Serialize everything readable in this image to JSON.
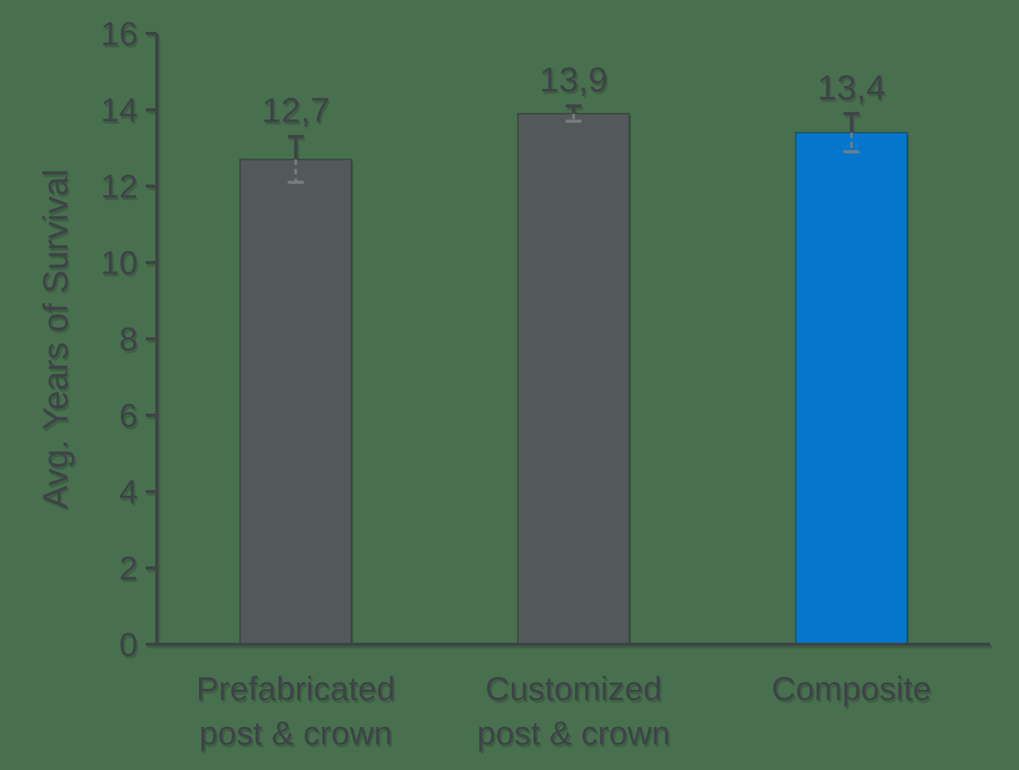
{
  "chart_data": {
    "type": "bar",
    "title": "",
    "xlabel": "",
    "ylabel": "Avg. Years of Survival",
    "categories": [
      [
        "Prefabricated",
        "post & crown"
      ],
      [
        "Customized",
        "post & crown"
      ],
      [
        "Composite"
      ]
    ],
    "values": [
      12.7,
      13.9,
      13.4
    ],
    "value_labels": [
      "12,7",
      "13,9",
      "13,4"
    ],
    "errors": [
      0.6,
      0.2,
      0.5
    ],
    "bar_colors": [
      "#53585b",
      "#53585b",
      "#0477cd"
    ],
    "yticks": [
      0,
      2,
      4,
      6,
      8,
      10,
      12,
      14,
      16
    ],
    "ytick_labels": [
      "0",
      "2",
      "4",
      "6",
      "8",
      "10",
      "12",
      "14",
      "16"
    ],
    "ylim": [
      0,
      16
    ],
    "grid": false,
    "legend": false
  },
  "colors": {
    "background": "#48704e",
    "axis": "#3e4347",
    "text": "#3e4347",
    "error_bar": "#3e4347",
    "error_bar_inner": "#7b8084"
  }
}
